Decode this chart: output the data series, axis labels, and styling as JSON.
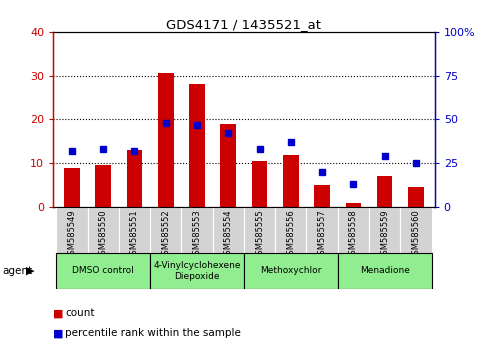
{
  "title": "GDS4171 / 1435521_at",
  "samples": [
    "GSM585549",
    "GSM585550",
    "GSM585551",
    "GSM585552",
    "GSM585553",
    "GSM585554",
    "GSM585555",
    "GSM585556",
    "GSM585557",
    "GSM585558",
    "GSM585559",
    "GSM585560"
  ],
  "counts": [
    9,
    9.5,
    13,
    30.5,
    28,
    19,
    10.5,
    12,
    5,
    1,
    7,
    4.5
  ],
  "percentile_ranks": [
    32,
    33,
    32,
    48,
    47,
    42,
    33,
    37,
    20,
    13,
    29,
    25
  ],
  "bar_color": "#cc0000",
  "marker_color": "#0000cc",
  "ylim_left": [
    0,
    40
  ],
  "ylim_right": [
    0,
    100
  ],
  "yticks_left": [
    0,
    10,
    20,
    30,
    40
  ],
  "ytick_labels_left": [
    "0",
    "10",
    "20",
    "30",
    "40"
  ],
  "yticks_right": [
    0,
    25,
    50,
    75,
    100
  ],
  "ytick_labels_right": [
    "0",
    "25",
    "50",
    "75",
    "100%"
  ],
  "agent_groups": [
    {
      "label": "DMSO control",
      "start": 0,
      "end": 2,
      "color": "#90ee90"
    },
    {
      "label": "4-Vinylcyclohexene\nDiepoxide",
      "start": 3,
      "end": 5,
      "color": "#90ee90"
    },
    {
      "label": "Methoxychlor",
      "start": 6,
      "end": 8,
      "color": "#90ee90"
    },
    {
      "label": "Menadione",
      "start": 9,
      "end": 11,
      "color": "#90ee90"
    }
  ],
  "agent_label": "agent",
  "legend_count_label": "count",
  "legend_pct_label": "percentile rank within the sample",
  "bar_width": 0.5,
  "grid_style": "dotted",
  "grid_color": "#000000",
  "left_axis_color": "#cc0000",
  "right_axis_color": "#0000cc",
  "bg_gray": "#d3d3d3",
  "bg_green": "#90ee90"
}
